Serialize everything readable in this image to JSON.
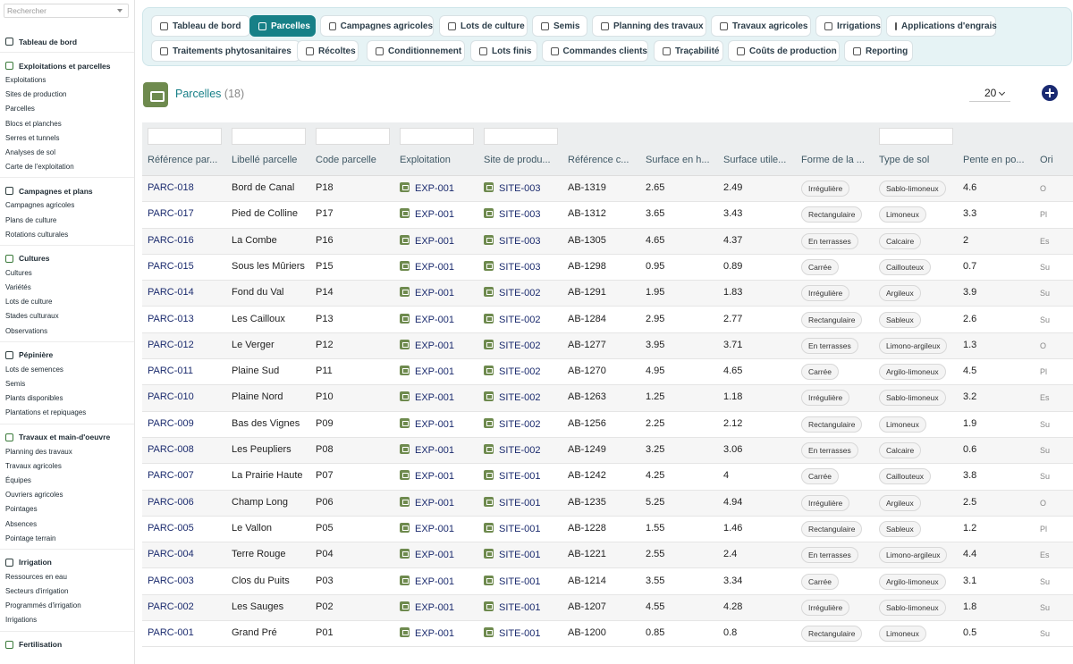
{
  "search": {
    "placeholder": "Rechercher"
  },
  "sidebar": {
    "sections": [
      {
        "title": "Tableau de bord",
        "icon": "dashboard-icon",
        "items": []
      },
      {
        "title": "Exploitations et parcelles",
        "icon": "parcel-icon",
        "items": [
          "Exploitations",
          "Sites de production",
          "Parcelles",
          "Blocs et planches",
          "Serres et tunnels",
          "Analyses de sol",
          "Carte de l'exploitation"
        ]
      },
      {
        "title": "Campagnes et plans",
        "icon": "calendar-icon",
        "items": [
          "Campagnes agricoles",
          "Plans de culture",
          "Rotations culturales"
        ]
      },
      {
        "title": "Cultures",
        "icon": "leaf-icon",
        "items": [
          "Cultures",
          "Variétés",
          "Lots de culture",
          "Stades culturaux",
          "Observations"
        ]
      },
      {
        "title": "Pépinière",
        "icon": "sprout-icon",
        "items": [
          "Lots de semences",
          "Semis",
          "Plants disponibles",
          "Plantations et repiquages"
        ]
      },
      {
        "title": "Travaux et main-d'oeuvre",
        "icon": "list-icon",
        "items": [
          "Planning des travaux",
          "Travaux agricoles",
          "Équipes",
          "Ouvriers agricoles",
          "Pointages",
          "Absences",
          "Pointage terrain"
        ]
      },
      {
        "title": "Irrigation",
        "icon": "drop-icon",
        "items": [
          "Ressources en eau",
          "Secteurs d'irrigation",
          "Programmés d'irrigation",
          "Irrigations"
        ]
      },
      {
        "title": "Fertilisation",
        "icon": "flask-icon",
        "items": []
      }
    ]
  },
  "tabs": [
    {
      "label": "Tableau de bord",
      "icon": "dashboard-icon",
      "active": false
    },
    {
      "label": "Parcelles",
      "icon": "parcel-icon",
      "active": true
    },
    {
      "label": "Campagnes agricoles",
      "icon": "calendar-icon",
      "active": false
    },
    {
      "label": "Lots de culture",
      "icon": "leaf-icon",
      "active": false
    },
    {
      "label": "Semis",
      "icon": "sprout-icon",
      "active": false
    },
    {
      "label": "Planning des travaux",
      "icon": "planning-icon",
      "active": false
    },
    {
      "label": "Travaux agricoles",
      "icon": "list-icon",
      "active": false
    },
    {
      "label": "Irrigations",
      "icon": "drop-icon",
      "active": false
    },
    {
      "label": "Applications d'engrais",
      "icon": "fertilizer-icon",
      "active": false
    },
    {
      "label": "Traitements phytosanitaires",
      "icon": "spray-icon",
      "active": false
    },
    {
      "label": "Récoltes",
      "icon": "basket-icon",
      "active": false
    },
    {
      "label": "Conditionnement",
      "icon": "package-icon",
      "active": false
    },
    {
      "label": "Lots finis",
      "icon": "boxes-icon",
      "active": false
    },
    {
      "label": "Commandes clients",
      "icon": "document-icon",
      "active": false
    },
    {
      "label": "Traçabilité",
      "icon": "barcode-icon",
      "active": false
    },
    {
      "label": "Coûts de production",
      "icon": "money-icon",
      "active": false
    },
    {
      "label": "Reporting",
      "icon": "chart-icon",
      "active": false
    }
  ],
  "page": {
    "title": "Parcelles",
    "count": "(18)",
    "per_page": "20"
  },
  "columns": [
    "Référence par...",
    "Libellé parcelle",
    "Code parcelle",
    "Exploitation",
    "Site de produ...",
    "Référence c...",
    "Surface en h...",
    "Surface utile...",
    "Forme de la ...",
    "Type de sol",
    "Pente en po...",
    "Ori"
  ],
  "rows": [
    [
      "PARC-018",
      "Bord de Canal",
      "P18",
      "EXP-001",
      "SITE-003",
      "AB-1319",
      "2.65",
      "2.49",
      "Irrégulière",
      "Sablo-limoneux",
      "4.6",
      "O"
    ],
    [
      "PARC-017",
      "Pied de Colline",
      "P17",
      "EXP-001",
      "SITE-003",
      "AB-1312",
      "3.65",
      "3.43",
      "Rectangulaire",
      "Limoneux",
      "3.3",
      "Pl"
    ],
    [
      "PARC-016",
      "La Combe",
      "P16",
      "EXP-001",
      "SITE-003",
      "AB-1305",
      "4.65",
      "4.37",
      "En terrasses",
      "Calcaire",
      "2",
      "Es"
    ],
    [
      "PARC-015",
      "Sous les Mûriers",
      "P15",
      "EXP-001",
      "SITE-003",
      "AB-1298",
      "0.95",
      "0.89",
      "Carrée",
      "Caillouteux",
      "0.7",
      "Su"
    ],
    [
      "PARC-014",
      "Fond du Val",
      "P14",
      "EXP-001",
      "SITE-002",
      "AB-1291",
      "1.95",
      "1.83",
      "Irrégulière",
      "Argileux",
      "3.9",
      "Su"
    ],
    [
      "PARC-013",
      "Les Cailloux",
      "P13",
      "EXP-001",
      "SITE-002",
      "AB-1284",
      "2.95",
      "2.77",
      "Rectangulaire",
      "Sableux",
      "2.6",
      "Su"
    ],
    [
      "PARC-012",
      "Le Verger",
      "P12",
      "EXP-001",
      "SITE-002",
      "AB-1277",
      "3.95",
      "3.71",
      "En terrasses",
      "Limono-argileux",
      "1.3",
      "O"
    ],
    [
      "PARC-011",
      "Plaine Sud",
      "P11",
      "EXP-001",
      "SITE-002",
      "AB-1270",
      "4.95",
      "4.65",
      "Carrée",
      "Argilo-limoneux",
      "4.5",
      "Pl"
    ],
    [
      "PARC-010",
      "Plaine Nord",
      "P10",
      "EXP-001",
      "SITE-002",
      "AB-1263",
      "1.25",
      "1.18",
      "Irrégulière",
      "Sablo-limoneux",
      "3.2",
      "Es"
    ],
    [
      "PARC-009",
      "Bas des Vignes",
      "P09",
      "EXP-001",
      "SITE-002",
      "AB-1256",
      "2.25",
      "2.12",
      "Rectangulaire",
      "Limoneux",
      "1.9",
      "Su"
    ],
    [
      "PARC-008",
      "Les Peupliers",
      "P08",
      "EXP-001",
      "SITE-002",
      "AB-1249",
      "3.25",
      "3.06",
      "En terrasses",
      "Calcaire",
      "0.6",
      "Su"
    ],
    [
      "PARC-007",
      "La Prairie Haute",
      "P07",
      "EXP-001",
      "SITE-001",
      "AB-1242",
      "4.25",
      "4",
      "Carrée",
      "Caillouteux",
      "3.8",
      "Su"
    ],
    [
      "PARC-006",
      "Champ Long",
      "P06",
      "EXP-001",
      "SITE-001",
      "AB-1235",
      "5.25",
      "4.94",
      "Irrégulière",
      "Argileux",
      "2.5",
      "O"
    ],
    [
      "PARC-005",
      "Le Vallon",
      "P05",
      "EXP-001",
      "SITE-001",
      "AB-1228",
      "1.55",
      "1.46",
      "Rectangulaire",
      "Sableux",
      "1.2",
      "Pl"
    ],
    [
      "PARC-004",
      "Terre Rouge",
      "P04",
      "EXP-001",
      "SITE-001",
      "AB-1221",
      "2.55",
      "2.4",
      "En terrasses",
      "Limono-argileux",
      "4.4",
      "Es"
    ],
    [
      "PARC-003",
      "Clos du Puits",
      "P03",
      "EXP-001",
      "SITE-001",
      "AB-1214",
      "3.55",
      "3.34",
      "Carrée",
      "Argilo-limoneux",
      "3.1",
      "Su"
    ],
    [
      "PARC-002",
      "Les Sauges",
      "P02",
      "EXP-001",
      "SITE-001",
      "AB-1207",
      "4.55",
      "4.28",
      "Irrégulière",
      "Sablo-limoneux",
      "1.8",
      "Su"
    ],
    [
      "PARC-001",
      "Grand Pré",
      "P01",
      "EXP-001",
      "SITE-001",
      "AB-1200",
      "0.85",
      "0.8",
      "Rectangulaire",
      "Limoneux",
      "0.5",
      "Su"
    ]
  ],
  "colors": {
    "accent": "#178087",
    "link": "#1b2b6e",
    "icon_green": "#6e8a4e",
    "add_button": "#1a2a72"
  }
}
